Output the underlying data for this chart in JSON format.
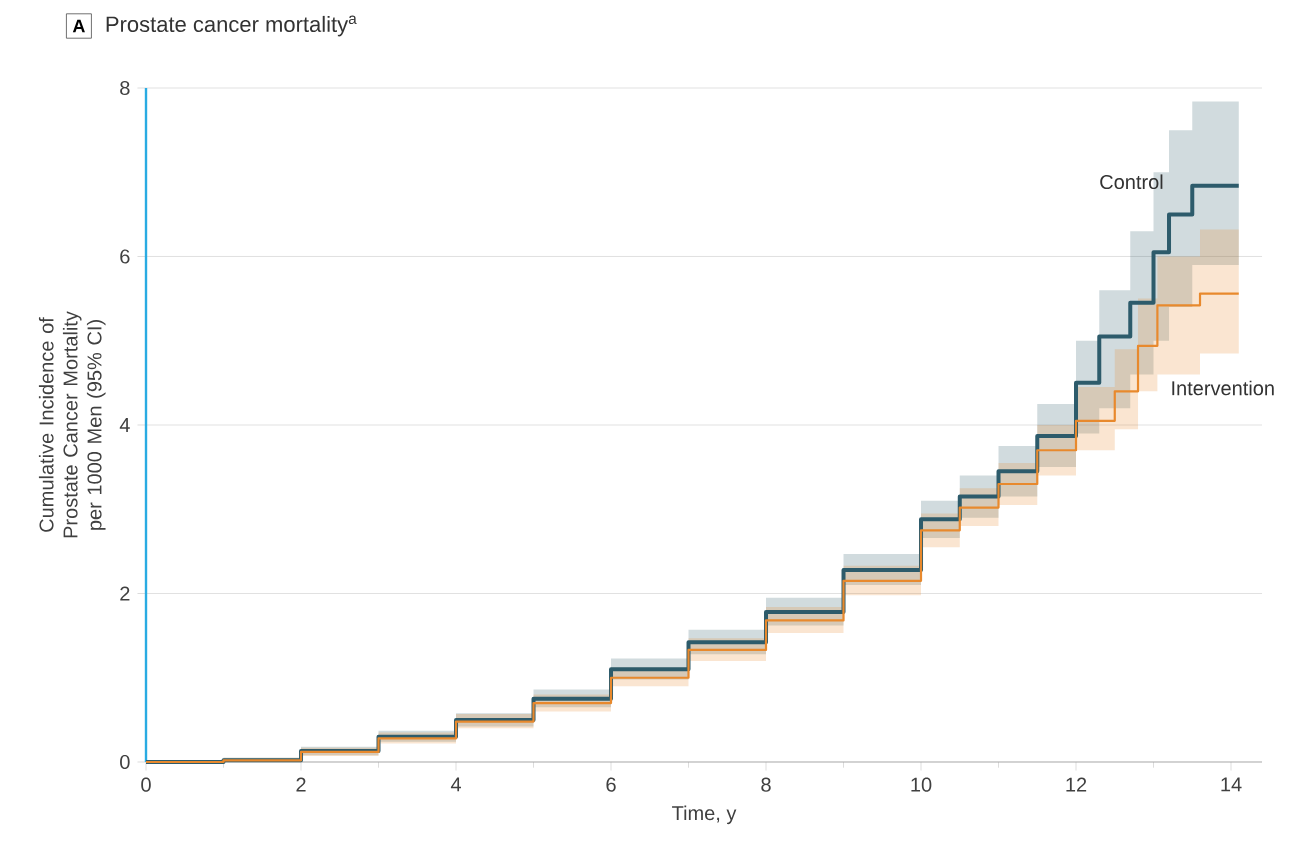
{
  "chart_data": {
    "type": "step",
    "title": "Prostate cancer mortality$^{a}$",
    "annotations": [
      "A"
    ],
    "xlabel": "Time, y",
    "ylabel": "Cumulative Incidence of Prostate Cancer Mortality per 1000 Men (95% CI)",
    "xlim": [
      0,
      14.4
    ],
    "ylim": [
      0,
      8
    ],
    "xticks": [
      0,
      2,
      4,
      6,
      8,
      10,
      12,
      14
    ],
    "yticks": [
      0,
      2,
      4,
      6,
      8
    ],
    "grid": "y",
    "series": [
      {
        "name": "Control",
        "color": "#2d5b6b",
        "x": [
          0,
          1,
          2,
          3,
          4,
          5,
          6,
          7,
          8,
          9,
          10,
          10.5,
          11,
          11.5,
          12,
          12.3,
          12.7,
          13,
          13.2,
          13.5,
          14.1
        ],
        "values": [
          0,
          0.02,
          0.13,
          0.3,
          0.5,
          0.75,
          1.1,
          1.42,
          1.78,
          2.28,
          2.88,
          3.15,
          3.45,
          3.87,
          4.5,
          5.05,
          5.45,
          6.05,
          6.5,
          6.84,
          6.84
        ],
        "lower": [
          0,
          0,
          0.08,
          0.24,
          0.42,
          0.65,
          0.98,
          1.28,
          1.62,
          2.1,
          2.66,
          2.9,
          3.15,
          3.5,
          3.9,
          4.2,
          4.6,
          5.0,
          5.4,
          5.9,
          5.9
        ],
        "upper": [
          0,
          0.05,
          0.18,
          0.37,
          0.58,
          0.86,
          1.23,
          1.57,
          1.95,
          2.47,
          3.1,
          3.4,
          3.75,
          4.25,
          5.0,
          5.6,
          6.3,
          7.0,
          7.5,
          7.84,
          7.84
        ]
      },
      {
        "name": "Intervention",
        "color": "#e8892d",
        "x": [
          0,
          1,
          2,
          3,
          4,
          5,
          6,
          7,
          8,
          9,
          10,
          10.5,
          11,
          11.5,
          12,
          12.5,
          12.8,
          13.05,
          13.6,
          14.1
        ],
        "values": [
          0,
          0.02,
          0.12,
          0.28,
          0.48,
          0.7,
          1.0,
          1.33,
          1.68,
          2.15,
          2.75,
          3.02,
          3.3,
          3.7,
          4.05,
          4.4,
          4.94,
          5.42,
          5.56,
          5.56
        ],
        "lower": [
          0,
          0,
          0.07,
          0.22,
          0.4,
          0.6,
          0.9,
          1.2,
          1.53,
          1.98,
          2.55,
          2.8,
          3.05,
          3.4,
          3.7,
          3.95,
          4.4,
          4.6,
          4.85,
          4.85
        ],
        "upper": [
          0,
          0.05,
          0.17,
          0.35,
          0.57,
          0.8,
          1.12,
          1.47,
          1.84,
          2.33,
          2.95,
          3.25,
          3.55,
          4.0,
          4.45,
          4.9,
          5.5,
          6.0,
          6.32,
          6.32
        ]
      }
    ]
  }
}
